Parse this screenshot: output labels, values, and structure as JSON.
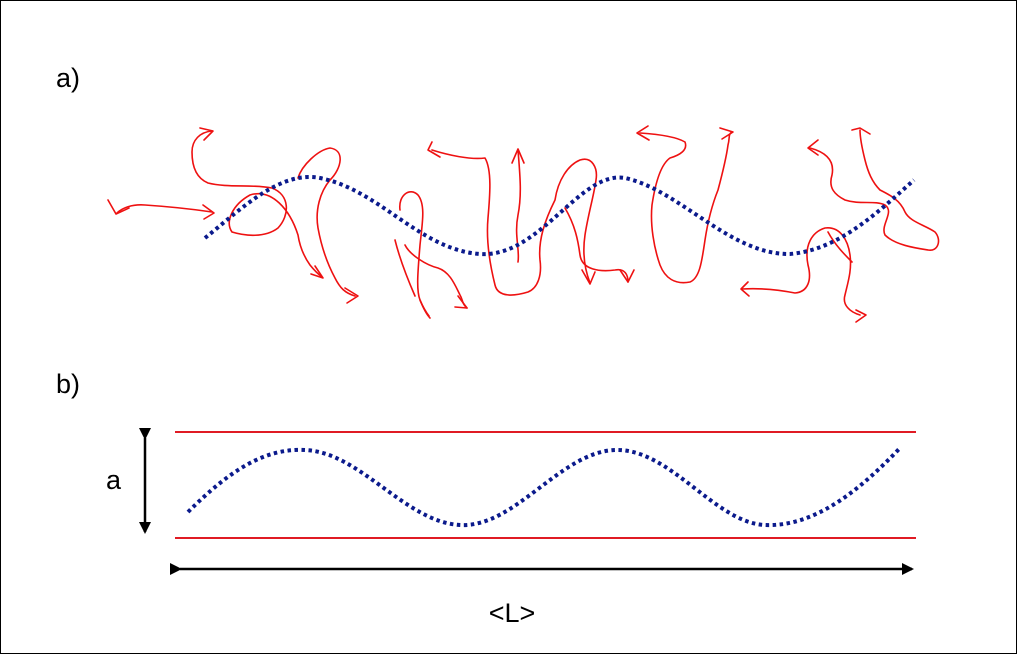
{
  "panel_a": {
    "label": "a)"
  },
  "panel_b": {
    "label": "b)",
    "width_label": "a",
    "length_label": "<L>"
  },
  "colors": {
    "chain": "#ee1111",
    "axis_curve": "#0b1a8c",
    "boundary": "#e01b24",
    "arrow": "#000000"
  }
}
